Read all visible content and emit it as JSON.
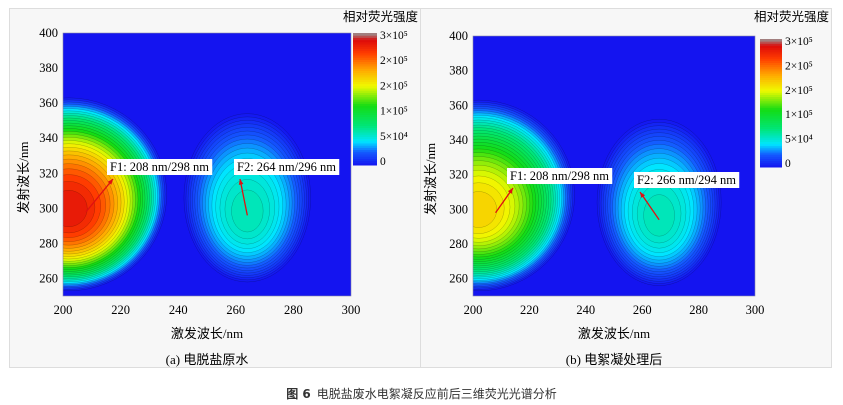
{
  "chart_data": [
    {
      "type": "heatmap",
      "subtype": "contour",
      "caption": "(a) 电脱盐原水",
      "xlabel": "激发波长/nm",
      "ylabel": "发射波长/nm",
      "colorbar_title": "相对荧光强度",
      "xlim": [
        200,
        300
      ],
      "ylim": [
        250,
        400
      ],
      "xticks": [
        "200",
        "220",
        "240",
        "260",
        "280",
        "300"
      ],
      "yticks": [
        "260",
        "280",
        "300",
        "320",
        "340",
        "360",
        "380",
        "400"
      ],
      "colorbar_ticks": [
        "3×10⁵",
        "2×10⁵",
        "2×10⁵",
        "1×10⁵",
        "5×10⁴",
        "0"
      ],
      "colorbar_range": [
        0,
        300000
      ],
      "peaks": [
        {
          "label": "F1: 208 nm/298 nm",
          "ex": 208,
          "em": 298,
          "intensity": 280000
        },
        {
          "label": "F2: 264 nm/296 nm",
          "ex": 264,
          "em": 296,
          "intensity": 75000
        }
      ]
    },
    {
      "type": "heatmap",
      "subtype": "contour",
      "caption": "(b) 电絮凝处理后",
      "xlabel": "激发波长/nm",
      "ylabel": "发射波长/nm",
      "colorbar_title": "相对荧光强度",
      "xlim": [
        200,
        300
      ],
      "ylim": [
        250,
        400
      ],
      "xticks": [
        "200",
        "220",
        "240",
        "260",
        "280",
        "300"
      ],
      "yticks": [
        "260",
        "280",
        "300",
        "320",
        "340",
        "360",
        "380",
        "400"
      ],
      "colorbar_ticks": [
        "3×10⁵",
        "2×10⁵",
        "2×10⁵",
        "1×10⁵",
        "5×10⁴",
        "0"
      ],
      "colorbar_range": [
        0,
        300000
      ],
      "peaks": [
        {
          "label": "F1: 208 nm/298 nm",
          "ex": 208,
          "em": 298,
          "intensity": 200000
        },
        {
          "label": "F2: 266 nm/294 nm",
          "ex": 266,
          "em": 294,
          "intensity": 75000
        }
      ]
    }
  ],
  "figure_caption": {
    "number": "图 6",
    "text": "电脱盐废水电絮凝反应前后三维荧光光谱分析"
  },
  "colors": {
    "background_blue": "#1414f0",
    "arrow": "#e01010"
  }
}
